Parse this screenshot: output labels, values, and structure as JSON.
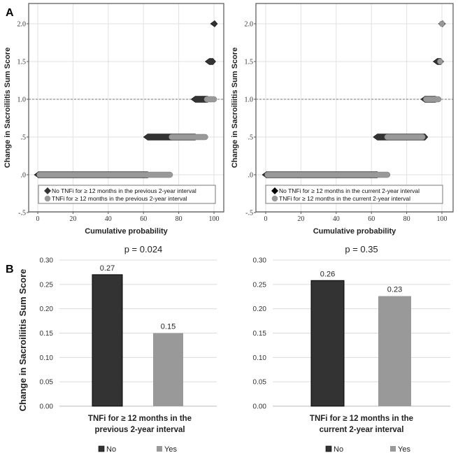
{
  "panel_labels": {
    "a": "A",
    "b": "B"
  },
  "colors": {
    "no": "#333333",
    "yes": "#999999",
    "no_bar": "#333333",
    "yes_bar": "#999999",
    "grid": "#e2e2e2",
    "ref_line": "#777777"
  },
  "chart_data": [
    {
      "id": "a_previous",
      "type": "scatter",
      "title": "",
      "xlabel": "Cumulative probability",
      "ylabel": "Change in Sacroiliitis Sum Score",
      "xlim": [
        0,
        100
      ],
      "ylim": [
        -0.5,
        2.0
      ],
      "x_ticks": [
        "0",
        "20",
        "40",
        "60",
        "80",
        "100"
      ],
      "x_tick_values": [
        0,
        20,
        40,
        60,
        80,
        100
      ],
      "y_ticks": [
        "-.5",
        ".0",
        ".5",
        "1.0",
        "1.5",
        "2.0"
      ],
      "y_tick_values": [
        -0.5,
        0,
        0.5,
        1.0,
        1.5,
        2.0
      ],
      "reference_line_y": 1.0,
      "grid": true,
      "legend_position": "bottom-inside",
      "series": [
        {
          "name": "No TNFi for ≥ 12 months in the previous 2-year interval",
          "marker": "diamond",
          "segments": [
            {
              "y": 0.0,
              "x_start": 0,
              "x_end": 62
            },
            {
              "y": 0.5,
              "x_start": 62,
              "x_end": 89
            },
            {
              "y": 1.0,
              "x_start": 89,
              "x_end": 96
            },
            {
              "y": 1.5,
              "x_start": 97,
              "x_end": 99
            },
            {
              "y": 2.0,
              "x_start": 100,
              "x_end": 100
            }
          ]
        },
        {
          "name": "TNFi for ≥ 12 months in the previous 2-year interval",
          "marker": "circle",
          "segments": [
            {
              "y": 0.0,
              "x_start": 1,
              "x_end": 75
            },
            {
              "y": 0.5,
              "x_start": 76,
              "x_end": 95
            },
            {
              "y": 1.0,
              "x_start": 96,
              "x_end": 100
            }
          ]
        }
      ]
    },
    {
      "id": "a_current",
      "type": "scatter",
      "title": "",
      "xlabel": "Cumulative probability",
      "ylabel": "Change in Sacroiliitis Sum Score",
      "xlim": [
        0,
        100
      ],
      "ylim": [
        -0.5,
        2.0
      ],
      "x_ticks": [
        "0",
        "20",
        "40",
        "60",
        "80",
        "100"
      ],
      "x_tick_values": [
        0,
        20,
        40,
        60,
        80,
        100
      ],
      "y_ticks": [
        "-.5",
        ".0",
        ".5",
        "1.0",
        "1.5",
        "2.0"
      ],
      "y_tick_values": [
        -0.5,
        0,
        0.5,
        1.0,
        1.5,
        2.0
      ],
      "reference_line_y": 1.0,
      "grid": true,
      "legend_position": "bottom-inside",
      "series": [
        {
          "name": "No TNFi for ≥ 12 months in the current 2-year interval",
          "marker": "diamond",
          "segments": [
            {
              "y": 0.0,
              "x_start": 0,
              "x_end": 63
            },
            {
              "y": 0.5,
              "x_start": 63,
              "x_end": 90
            },
            {
              "y": 1.0,
              "x_start": 90,
              "x_end": 96
            },
            {
              "y": 1.5,
              "x_start": 97,
              "x_end": 99
            },
            {
              "y": 2.0,
              "x_start": 100,
              "x_end": 100
            }
          ]
        },
        {
          "name": "TNFi for ≥ 12 months in the current 2-year interval",
          "marker": "circle",
          "segments": [
            {
              "y": 0.0,
              "x_start": 1,
              "x_end": 69
            },
            {
              "y": 0.5,
              "x_start": 69,
              "x_end": 89
            },
            {
              "y": 1.0,
              "x_start": 91,
              "x_end": 98
            },
            {
              "y": 1.5,
              "x_start": 99,
              "x_end": 99
            },
            {
              "y": 2.0,
              "x_start": 100,
              "x_end": 100
            }
          ]
        }
      ]
    },
    {
      "id": "b_previous",
      "type": "bar",
      "title": "p = 0.024",
      "xlabel": "TNFi for ≥ 12 months in the previous 2-year interval",
      "xlabel_lines": [
        "TNFi for ≥ 12 months in the",
        "previous 2-year interval"
      ],
      "ylabel": "Change in Sacroiliitis Sum Score",
      "ylim": [
        0,
        0.3
      ],
      "y_ticks": [
        "0.00",
        "0.05",
        "0.10",
        "0.15",
        "0.20",
        "0.25",
        "0.30"
      ],
      "y_tick_values": [
        0,
        0.05,
        0.1,
        0.15,
        0.2,
        0.25,
        0.3
      ],
      "grid": true,
      "legend_position": "bottom",
      "categories": [
        "No",
        "Yes"
      ],
      "values": [
        0.27,
        0.15
      ],
      "data_labels": [
        "0.27",
        "0.15"
      ]
    },
    {
      "id": "b_current",
      "type": "bar",
      "title": "p = 0.35",
      "xlabel": "TNFi for ≥ 12 months in the current 2-year interval",
      "xlabel_lines": [
        "TNFi for ≥ 12 months in the",
        "current 2-year interval"
      ],
      "ylabel": "",
      "ylim": [
        0,
        0.3
      ],
      "y_ticks": [
        "0.00",
        "0.05",
        "0.10",
        "0.15",
        "0.20",
        "0.25",
        "0.30"
      ],
      "y_tick_values": [
        0,
        0.05,
        0.1,
        0.15,
        0.2,
        0.25,
        0.3
      ],
      "grid": true,
      "legend_position": "bottom",
      "categories": [
        "No",
        "Yes"
      ],
      "values": [
        0.258,
        0.226
      ],
      "data_labels": [
        "0.26",
        "0.23"
      ]
    }
  ]
}
